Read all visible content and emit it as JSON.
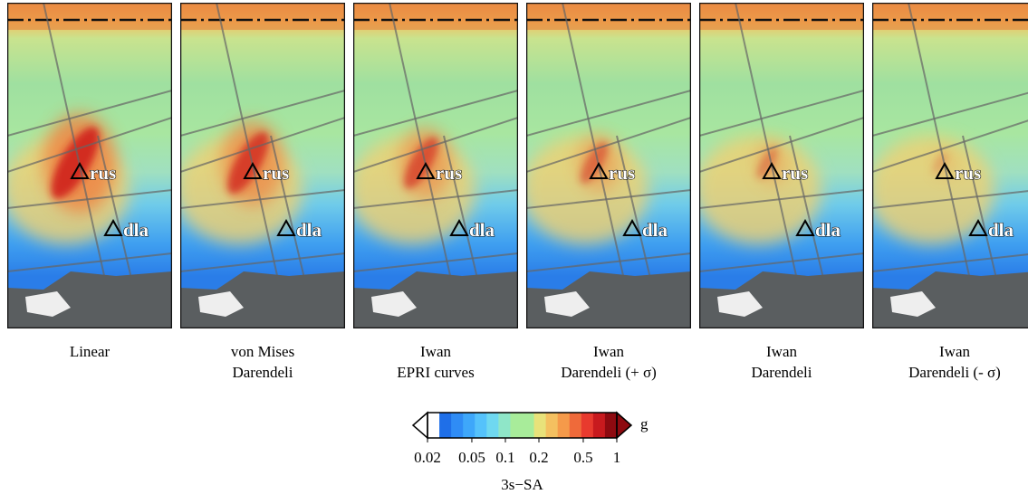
{
  "panels": [
    {
      "label": [
        "Linear"
      ]
    },
    {
      "label": [
        "von Mises",
        "Darendeli"
      ]
    },
    {
      "label": [
        "Iwan",
        "EPRI curves"
      ]
    },
    {
      "label": [
        "Iwan",
        "Darendeli (+ σ)"
      ]
    },
    {
      "label": [
        "Iwan",
        "Darendeli"
      ]
    },
    {
      "label": [
        "Iwan",
        "Darendeli (- σ)"
      ]
    }
  ],
  "stations": [
    "rus",
    "dla"
  ],
  "colorbar": {
    "scale": "log",
    "lim": [
      0.02,
      1
    ],
    "ticks": [
      0.02,
      0.05,
      0.1,
      0.2,
      0.5,
      1
    ],
    "unit": "g",
    "label": "3s−SA",
    "colors": [
      "#ffffff",
      "#1f6fe8",
      "#2f8cf5",
      "#3ea7fa",
      "#55c2fb",
      "#6fd8f0",
      "#8fe6c8",
      "#a8ec9a",
      "#a8ec9a",
      "#e8e27a",
      "#f4c060",
      "#f59a4a",
      "#ef6a3a",
      "#e83a2e",
      "#c81a1e",
      "#8e0a10"
    ]
  }
}
